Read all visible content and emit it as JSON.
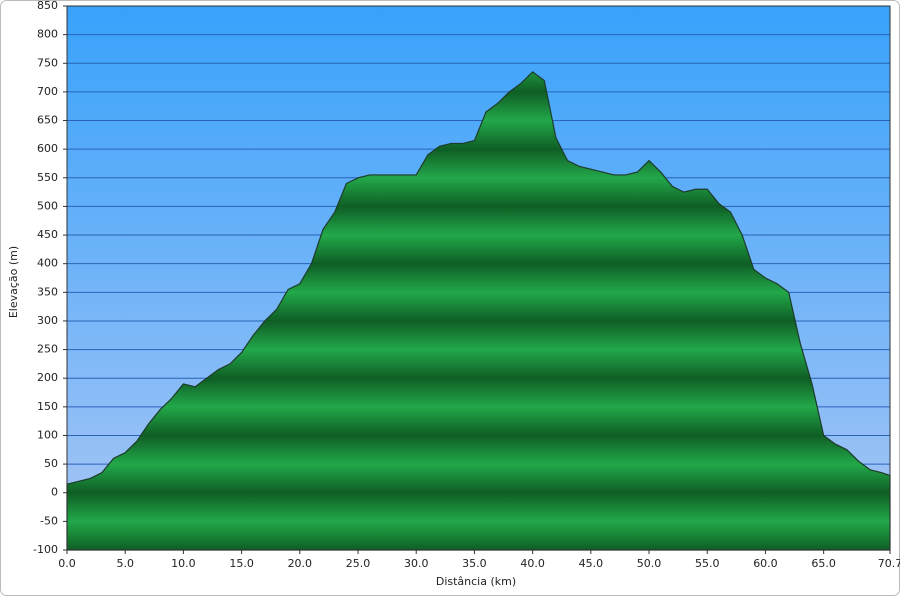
{
  "chart_data": {
    "type": "area",
    "x_label": "Distância   (km)",
    "y_label": "Elevação (m)",
    "x": [
      0,
      1,
      2,
      3,
      4,
      5,
      6,
      7,
      8,
      9,
      10,
      11,
      12,
      13,
      14,
      15,
      16,
      17,
      18,
      19,
      20,
      21,
      22,
      23,
      24,
      25,
      26,
      27,
      28,
      29,
      30,
      31,
      32,
      33,
      34,
      35,
      36,
      37,
      38,
      39,
      40,
      41,
      42,
      43,
      44,
      45,
      46,
      47,
      48,
      49,
      50,
      51,
      52,
      53,
      54,
      55,
      56,
      57,
      58,
      59,
      60,
      61,
      62,
      63,
      64,
      65,
      66,
      67,
      68,
      69,
      70,
      70.7
    ],
    "values": [
      15,
      20,
      25,
      35,
      60,
      70,
      90,
      120,
      145,
      165,
      190,
      185,
      200,
      215,
      225,
      245,
      275,
      300,
      320,
      355,
      365,
      400,
      460,
      490,
      540,
      550,
      555,
      555,
      555,
      555,
      555,
      590,
      605,
      610,
      610,
      615,
      665,
      680,
      700,
      715,
      735,
      720,
      620,
      580,
      570,
      565,
      560,
      555,
      555,
      560,
      580,
      560,
      535,
      525,
      530,
      530,
      505,
      490,
      450,
      390,
      375,
      365,
      350,
      260,
      190,
      100,
      85,
      75,
      55,
      40,
      35,
      30
    ],
    "color": "#22a84a",
    "xlim": [
      0,
      70.7
    ],
    "xticks": [
      {
        "value": 0,
        "label": "0.0"
      },
      {
        "value": 5,
        "label": "5.0"
      },
      {
        "value": 10,
        "label": "10.0"
      },
      {
        "value": 15,
        "label": "15.0"
      },
      {
        "value": 20,
        "label": "20.0"
      },
      {
        "value": 25,
        "label": "25.0"
      },
      {
        "value": 30,
        "label": "30.0"
      },
      {
        "value": 35,
        "label": "35.0"
      },
      {
        "value": 40,
        "label": "40.0"
      },
      {
        "value": 45,
        "label": "45.0"
      },
      {
        "value": 50,
        "label": "50.0"
      },
      {
        "value": 55,
        "label": "55.0"
      },
      {
        "value": 60,
        "label": "60.0"
      },
      {
        "value": 65,
        "label": "65.0"
      },
      70.7
    ],
    "ylim": [
      -100,
      850
    ],
    "yticks": [
      -100,
      -50,
      0,
      50,
      100,
      150,
      200,
      250,
      300,
      350,
      400,
      450,
      500,
      550,
      600,
      650,
      700,
      750,
      800,
      850
    ],
    "grid": true
  }
}
